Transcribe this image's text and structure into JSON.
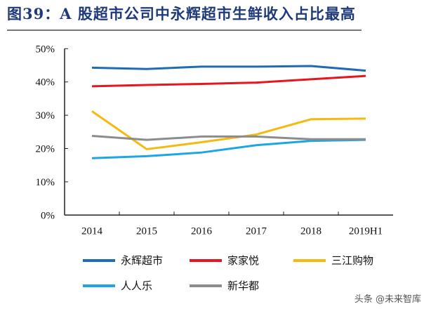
{
  "title": "图39：A 股超市公司中永辉超市生鲜收入占比最高",
  "watermark": "头条 @未来智库",
  "chart_data": {
    "type": "line",
    "categories": [
      "2014",
      "2015",
      "2016",
      "2017",
      "2018",
      "2019H1"
    ],
    "ylim": [
      0,
      50
    ],
    "yticks": [
      "0%",
      "10%",
      "20%",
      "30%",
      "40%",
      "50%"
    ],
    "grid": false,
    "legend_position": "bottom",
    "series": [
      {
        "name": "永辉超市",
        "color": "#1f6bb5",
        "values": [
          44.3,
          43.9,
          44.6,
          44.6,
          44.8,
          43.4
        ]
      },
      {
        "name": "家家悦",
        "color": "#e8141e",
        "values": [
          38.7,
          39.1,
          39.4,
          39.8,
          40.8,
          41.8
        ]
      },
      {
        "name": "三江购物",
        "color": "#f5b90f",
        "values": [
          31.2,
          19.8,
          21.9,
          24.2,
          28.8,
          29.0
        ]
      },
      {
        "name": "人人乐",
        "color": "#1ea6e4",
        "values": [
          17.1,
          17.7,
          18.8,
          21.0,
          22.3,
          22.6
        ]
      },
      {
        "name": "新华都",
        "color": "#8c8c8c",
        "values": [
          23.8,
          22.6,
          23.6,
          23.6,
          22.8,
          22.8
        ]
      }
    ]
  }
}
